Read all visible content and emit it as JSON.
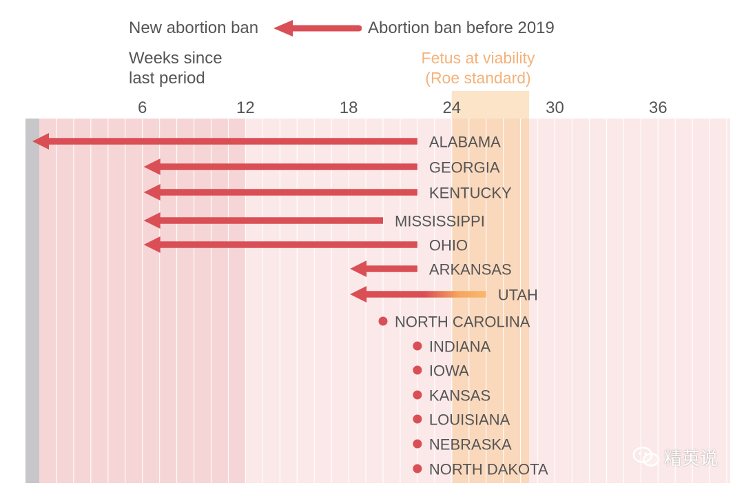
{
  "chart_data": {
    "type": "bar",
    "subtype": "arrow-range",
    "legend": {
      "new_label": "New abortion ban",
      "old_label": "Abortion ban before 2019"
    },
    "axis": {
      "title_line1": "Weeks since",
      "title_line2": "last period",
      "xlim": [
        0,
        41
      ],
      "ticks": [
        6,
        12,
        18,
        24,
        30,
        36
      ]
    },
    "viability": {
      "label_line1": "Fetus at viability",
      "label_line2": "(Roe standard)",
      "range": [
        24,
        28.5
      ]
    },
    "states": [
      {
        "name": "ALABAMA",
        "from": 22,
        "to": 0
      },
      {
        "name": "GEORGIA",
        "from": 22,
        "to": 6
      },
      {
        "name": "KENTUCKY",
        "from": 22,
        "to": 6
      },
      {
        "name": "MISSISSIPPI",
        "from": 20,
        "to": 6
      },
      {
        "name": "OHIO",
        "from": 22,
        "to": 6
      },
      {
        "name": "ARKANSAS",
        "from": 22,
        "to": 18
      },
      {
        "name": "UTAH",
        "from": 26,
        "to": 18
      },
      {
        "name": "NORTH CAROLINA",
        "from": 20,
        "to": 20
      },
      {
        "name": "INDIANA",
        "from": 22,
        "to": 22
      },
      {
        "name": "IOWA",
        "from": 22,
        "to": 22
      },
      {
        "name": "KANSAS",
        "from": 22,
        "to": 22
      },
      {
        "name": "LOUISIANA",
        "from": 22,
        "to": 22
      },
      {
        "name": "NEBRASKA",
        "from": 22,
        "to": 22
      },
      {
        "name": "NORTH DAKOTA",
        "from": 22,
        "to": 22
      }
    ]
  },
  "colors": {
    "accent": "#d94f55",
    "viability": "#f8c486",
    "band_dark": "#f6d5d6",
    "band_light": "#fbe9ea",
    "gray_strip": "#c7c7c9",
    "label": "#555555"
  },
  "watermark": {
    "text": "精英说",
    "icon": "wechat-icon"
  }
}
